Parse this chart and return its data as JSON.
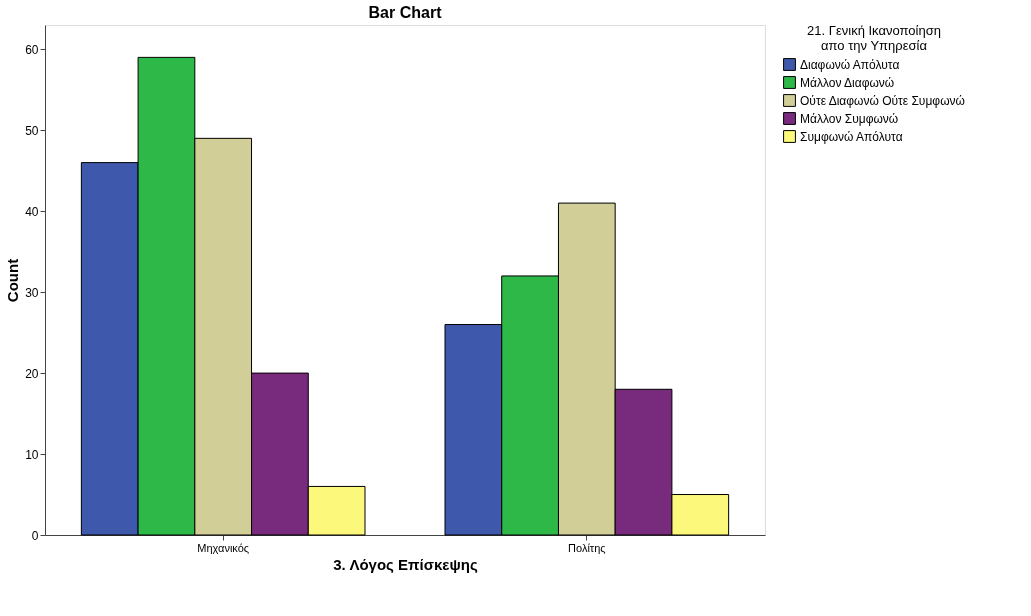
{
  "chart_data": {
    "type": "bar",
    "title": "Bar Chart",
    "xlabel": "3. Λόγος Επίσκεψης",
    "ylabel": "Count",
    "legend_title": "21. Γενική Ικανοποίηση απο την Υπηρεσία",
    "categories": [
      "Μηχανικός",
      "Πολίτης"
    ],
    "series": [
      {
        "name": "Διαφωνώ Απόλυτα",
        "color": "#3e58ac",
        "values": [
          46,
          26
        ]
      },
      {
        "name": "Μάλλον Διαφωνώ",
        "color": "#2eb848",
        "values": [
          59,
          32
        ]
      },
      {
        "name": "Ούτε Διαφωνώ Ούτε Συμφωνώ",
        "color": "#d2ce98",
        "values": [
          49,
          41
        ]
      },
      {
        "name": "Μάλλον Συμφωνώ",
        "color": "#782a7c",
        "values": [
          20,
          18
        ]
      },
      {
        "name": "Συμφωνώ Απόλυτα",
        "color": "#fcf87c",
        "values": [
          6,
          5
        ]
      }
    ],
    "ylim": [
      0,
      63
    ],
    "yticks": [
      0,
      10,
      20,
      30,
      40,
      50,
      60
    ],
    "grid": false,
    "legend": "right"
  }
}
